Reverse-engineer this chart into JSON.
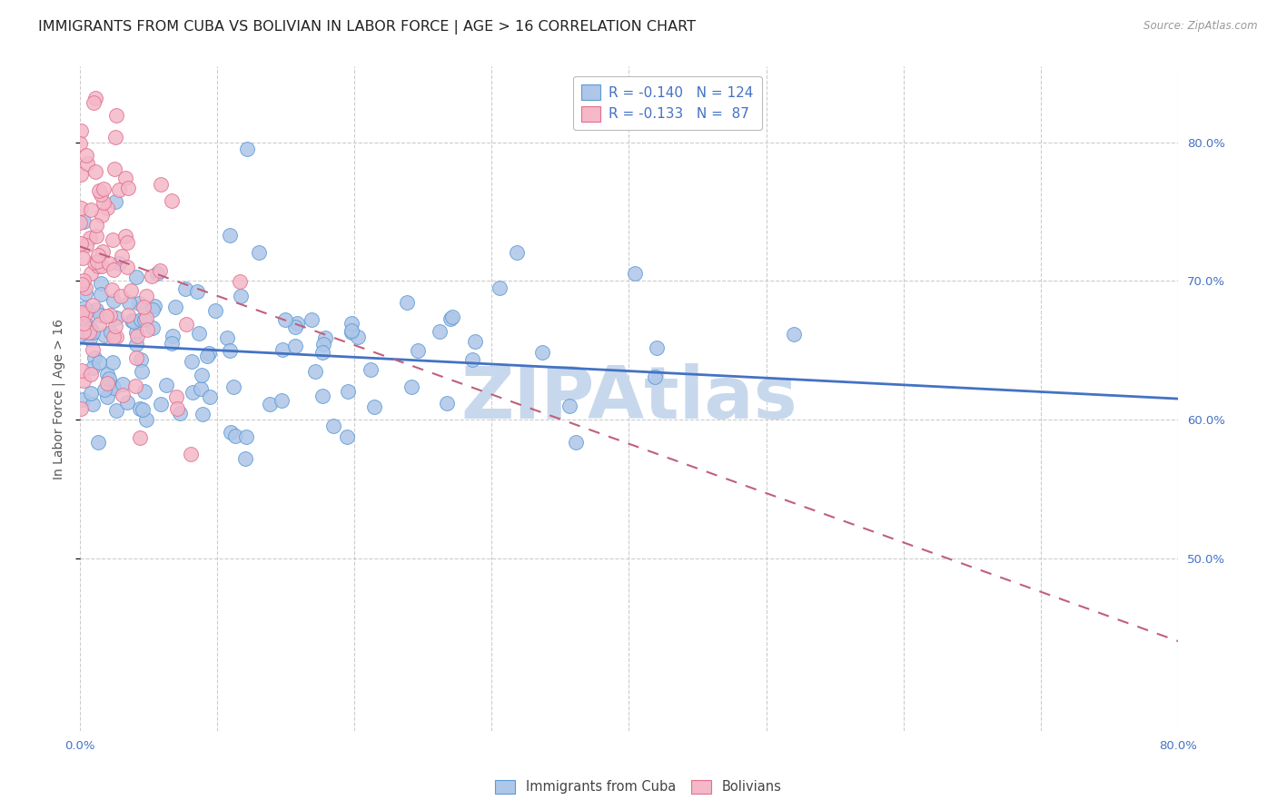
{
  "title": "IMMIGRANTS FROM CUBA VS BOLIVIAN IN LABOR FORCE | AGE > 16 CORRELATION CHART",
  "source": "Source: ZipAtlas.com",
  "ylabel": "In Labor Force | Age > 16",
  "x_min": 0.0,
  "x_max": 0.8,
  "y_min": 0.375,
  "y_max": 0.855,
  "y_ticks_right": [
    0.5,
    0.6,
    0.7,
    0.8
  ],
  "y_tick_labels_right": [
    "50.0%",
    "60.0%",
    "70.0%",
    "80.0%"
  ],
  "cuba_color": "#aec6e8",
  "cuba_edge_color": "#5b9bd5",
  "bolivia_color": "#f4b8c8",
  "bolivia_edge_color": "#e07090",
  "cuba_R": -0.14,
  "cuba_N": 124,
  "bolivia_R": -0.133,
  "bolivia_N": 87,
  "cuba_line_color": "#4472c4",
  "bolivia_line_color": "#c0607a",
  "watermark": "ZIPAtlas",
  "watermark_color": "#c8d8ec",
  "background_color": "#ffffff",
  "grid_color": "#cccccc",
  "title_fontsize": 11.5,
  "axis_label_fontsize": 10,
  "tick_fontsize": 9.5,
  "cuba_trend_start_y": 0.655,
  "cuba_trend_end_y": 0.615,
  "bolivia_trend_start_y": 0.725,
  "bolivia_trend_end_y": 0.44
}
